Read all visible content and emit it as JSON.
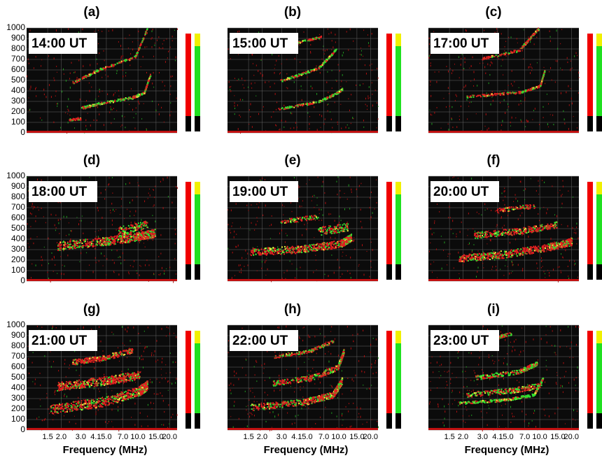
{
  "panels": [
    {
      "label": "(a)",
      "time": "14:00 UT"
    },
    {
      "label": "(b)",
      "time": "15:00 UT"
    },
    {
      "label": "(c)",
      "time": "17:00 UT"
    },
    {
      "label": "(d)",
      "time": "18:00 UT"
    },
    {
      "label": "(e)",
      "time": "19:00 UT"
    },
    {
      "label": "(f)",
      "time": "20:00 UT"
    },
    {
      "label": "(g)",
      "time": "21:00 UT"
    },
    {
      "label": "(h)",
      "time": "22:00 UT"
    },
    {
      "label": "(i)",
      "time": "23:00 UT"
    }
  ],
  "y_axis_ticks": [
    1000,
    900,
    800,
    700,
    600,
    500,
    400,
    300,
    200,
    100,
    0
  ],
  "x_axis_ticks": [
    "1.5",
    "2.0",
    "3.0",
    "4.1",
    "5.0",
    "7.0",
    "10.0",
    "15.0",
    "20.0"
  ],
  "x_axis_label": "Frequency (MHz)"
}
